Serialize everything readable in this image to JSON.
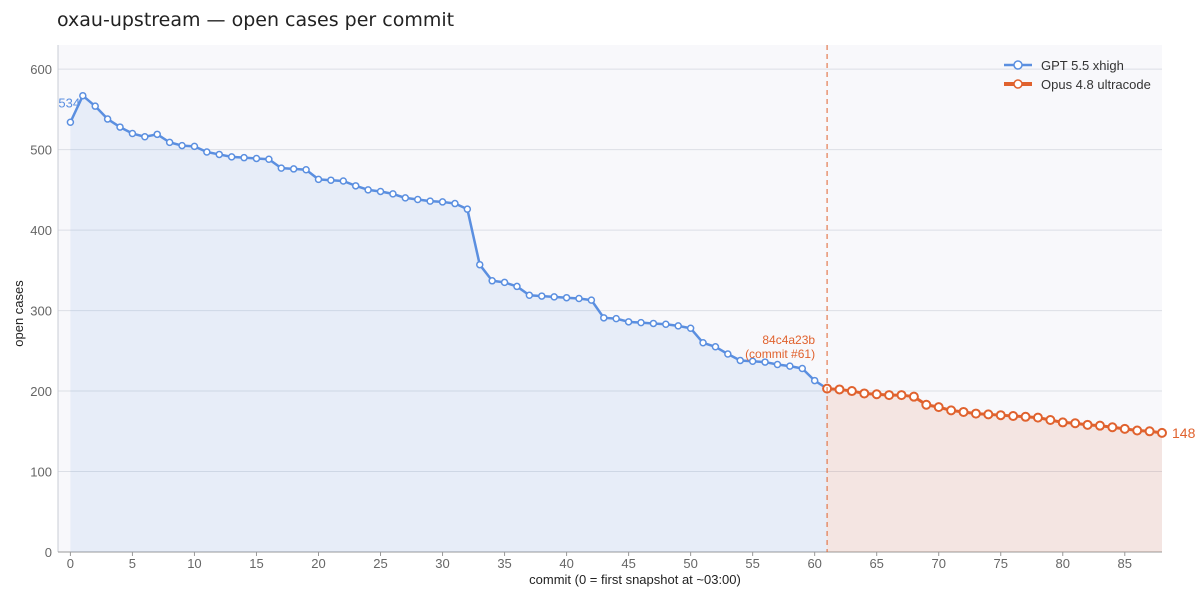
{
  "chart_data": {
    "type": "line",
    "title": "oxau-upstream — open cases per commit",
    "xlabel": "commit  (0 = first snapshot at ~03:00)",
    "ylabel": "open cases",
    "xlim": [
      -1,
      88
    ],
    "ylim": [
      0,
      630
    ],
    "x_ticks": [
      0,
      5,
      10,
      15,
      20,
      25,
      30,
      35,
      40,
      45,
      50,
      55,
      60,
      65,
      70,
      75,
      80,
      85
    ],
    "y_ticks": [
      0,
      100,
      200,
      300,
      400,
      500,
      600
    ],
    "grid": true,
    "legend_position": "top-right",
    "series": [
      {
        "name": "GPT 5.5 xhigh",
        "color": "#5b8fe0",
        "start_x": 0,
        "values": [
          534,
          567,
          554,
          538,
          528,
          520,
          516,
          519,
          509,
          505,
          504,
          497,
          494,
          491,
          490,
          489,
          488,
          477,
          476,
          475,
          463,
          462,
          461,
          455,
          450,
          448,
          445,
          440,
          438,
          436,
          435,
          433,
          426,
          357,
          337,
          335,
          330,
          319,
          318,
          317,
          316,
          315,
          313,
          291,
          290,
          286,
          285,
          284,
          283,
          281,
          278,
          260,
          255,
          246,
          238,
          237,
          236,
          233,
          231,
          228,
          213,
          203
        ]
      },
      {
        "name": "Opus 4.8 ultracode",
        "color": "#e0622e",
        "start_x": 61,
        "values": [
          203,
          202,
          200,
          197,
          196,
          195,
          195,
          193,
          183,
          180,
          176,
          174,
          172,
          171,
          170,
          169,
          168,
          167,
          164,
          161,
          160,
          158,
          157,
          155,
          153,
          151,
          150,
          148
        ]
      }
    ],
    "annotations": {
      "start_value_label": "534",
      "end_value_label": "148",
      "marker_x": 61,
      "marker_label_line1": "84c4a23b",
      "marker_label_line2": "(commit #61)"
    }
  }
}
